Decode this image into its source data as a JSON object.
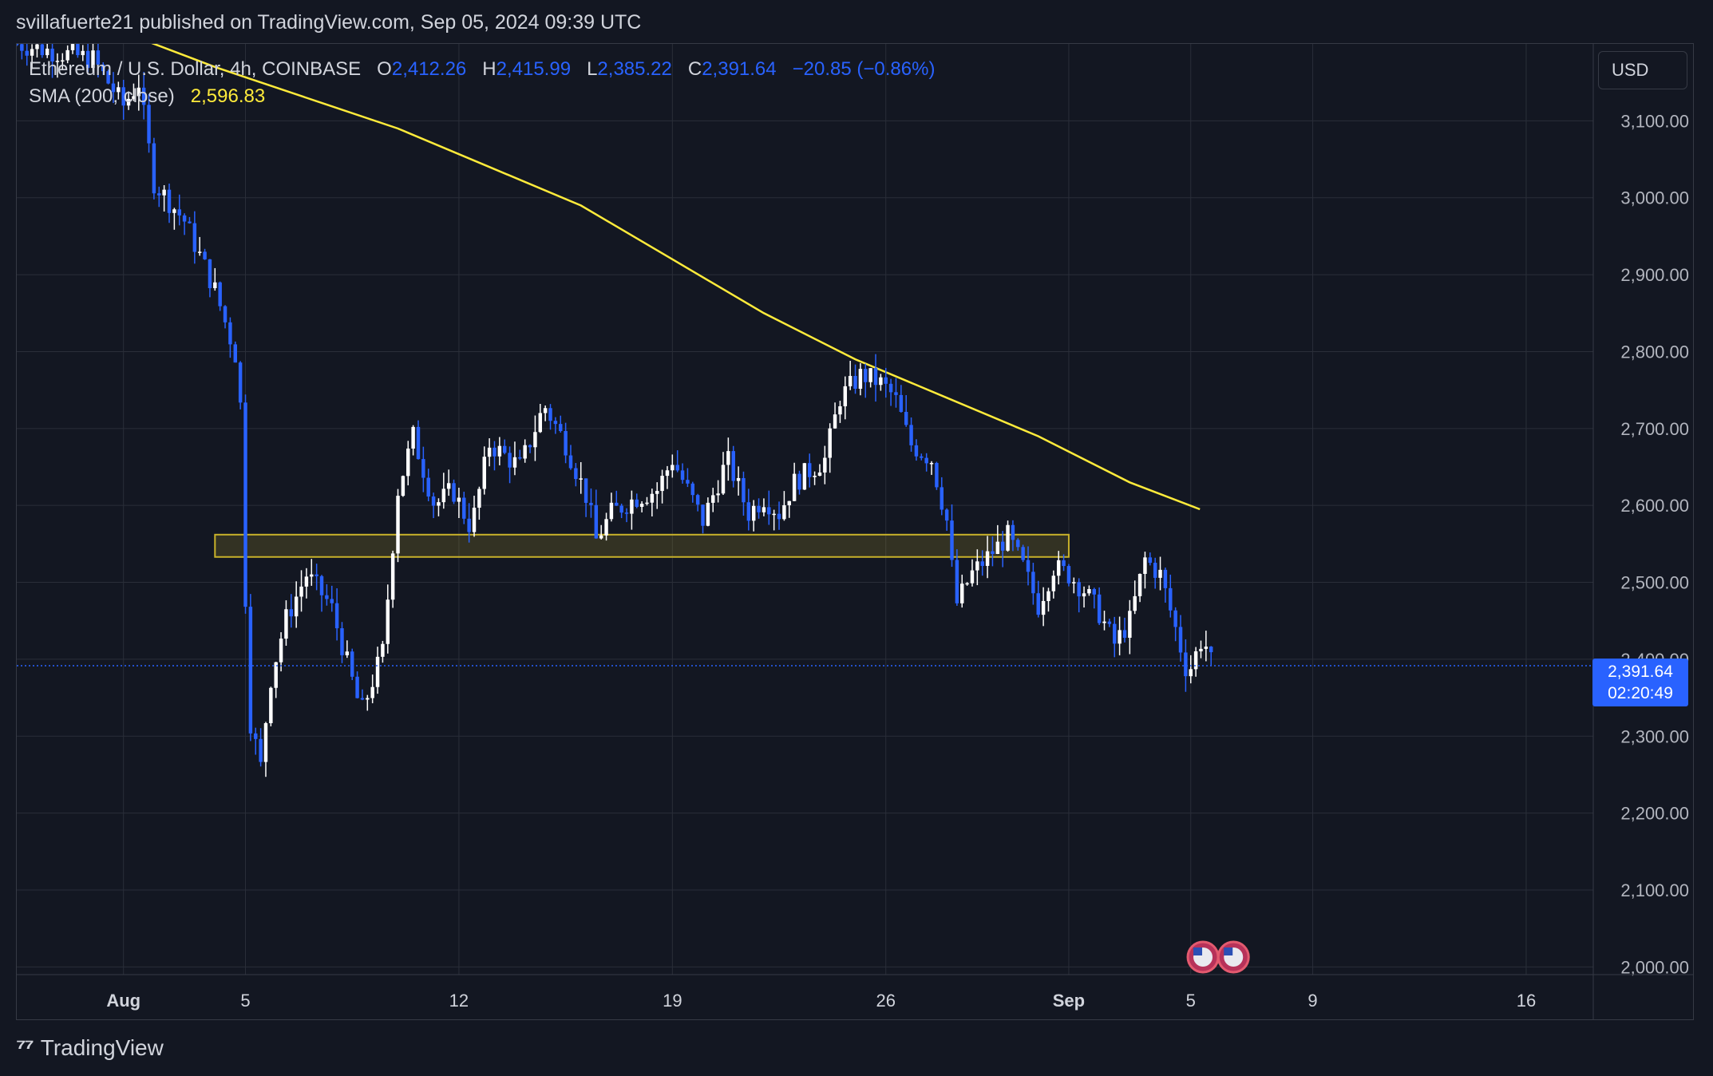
{
  "header": {
    "publisher_line": "svillafuerte21 published on TradingView.com, Sep 05, 2024 09:39 UTC"
  },
  "legend": {
    "symbol": "Ethereum / U.S. Dollar, 4h, COINBASE",
    "o_label": "O",
    "o_value": "2,412.26",
    "h_label": "H",
    "h_value": "2,415.99",
    "l_label": "L",
    "l_value": "2,385.22",
    "c_label": "C",
    "c_value": "2,391.64",
    "change": "−20.85 (−0.86%)",
    "sma_label": "SMA (200, close)",
    "sma_value": "2,596.83"
  },
  "currency_button": "USD",
  "price_tag": {
    "price": "2,391.64",
    "countdown": "02:20:49"
  },
  "footer": {
    "brand": "TradingView",
    "logo_icon": "tradingview-logo-icon"
  },
  "colors": {
    "background": "#131722",
    "grid": "#2a2e39",
    "candle_up": "#ffffff",
    "candle_down": "#2962ff",
    "sma": "#ffeb3b",
    "zone": "#c9b22a",
    "price_line": "#2962ff"
  },
  "chart_data": {
    "type": "candlestick",
    "title": "Ethereum / U.S. Dollar, 4h, COINBASE",
    "y_ticks": [
      2000,
      2100,
      2200,
      2300,
      2400,
      2500,
      2600,
      2700,
      2800,
      2900,
      3000,
      3100
    ],
    "y_tick_labels": [
      "2,000.00",
      "2,100.00",
      "2,200.00",
      "2,300.00",
      "2,400.00",
      "2,500.00",
      "2,600.00",
      "2,700.00",
      "2,800.00",
      "2,900.00",
      "3,000.00",
      "3,100.00"
    ],
    "ylim": [
      1990,
      3200
    ],
    "x_ticks": [
      {
        "label": "Aug",
        "day": 1
      },
      {
        "label": "5",
        "day": 5
      },
      {
        "label": "12",
        "day": 12
      },
      {
        "label": "19",
        "day": 19
      },
      {
        "label": "26",
        "day": 26
      },
      {
        "label": "Sep",
        "day": 32
      },
      {
        "label": "5",
        "day": 36
      },
      {
        "label": "9",
        "day": 40
      },
      {
        "label": "16",
        "day": 47
      }
    ],
    "xlim": [
      -2.5,
      49.2
    ],
    "x_unit": "days since Jul 31, 2024",
    "current_price": 2391.64,
    "sma_200": [
      [
        -2.5,
        3270
      ],
      [
        1,
        3215
      ],
      [
        4,
        3170
      ],
      [
        7,
        3130
      ],
      [
        10,
        3090
      ],
      [
        13,
        3040
      ],
      [
        16,
        2990
      ],
      [
        19,
        2920
      ],
      [
        22,
        2850
      ],
      [
        25,
        2790
      ],
      [
        28,
        2740
      ],
      [
        31,
        2690
      ],
      [
        34,
        2630
      ],
      [
        36.3,
        2595
      ]
    ],
    "support_zone": {
      "day_start": 4,
      "day_end": 32,
      "low": 2533,
      "high": 2562
    },
    "events": [
      {
        "day": 36.4,
        "icon": "us-flag-icon"
      },
      {
        "day": 37.4,
        "icon": "us-flag-icon"
      }
    ],
    "path_points": [
      [
        -2.5,
        3200
      ],
      [
        0,
        3180
      ],
      [
        1,
        3120
      ],
      [
        1.5,
        3150
      ],
      [
        2,
        3020
      ],
      [
        3,
        2970
      ],
      [
        4,
        2880
      ],
      [
        4.8,
        2780
      ],
      [
        5.1,
        2330
      ],
      [
        5.5,
        2260
      ],
      [
        5.8,
        2370
      ],
      [
        6.3,
        2450
      ],
      [
        7,
        2510
      ],
      [
        7.8,
        2470
      ],
      [
        8.3,
        2400
      ],
      [
        8.8,
        2330
      ],
      [
        9.5,
        2410
      ],
      [
        10,
        2620
      ],
      [
        10.5,
        2690
      ],
      [
        11.2,
        2600
      ],
      [
        11.8,
        2620
      ],
      [
        12.4,
        2570
      ],
      [
        13,
        2680
      ],
      [
        14,
        2650
      ],
      [
        14.8,
        2730
      ],
      [
        15.5,
        2680
      ],
      [
        16.2,
        2610
      ],
      [
        16.5,
        2555
      ],
      [
        17,
        2590
      ],
      [
        17.8,
        2610
      ],
      [
        18.5,
        2620
      ],
      [
        19,
        2660
      ],
      [
        19.5,
        2620
      ],
      [
        20,
        2580
      ],
      [
        20.8,
        2660
      ],
      [
        21.5,
        2590
      ],
      [
        22,
        2610
      ],
      [
        22.5,
        2590
      ],
      [
        23,
        2630
      ],
      [
        24,
        2660
      ],
      [
        24.5,
        2740
      ],
      [
        25.2,
        2770
      ],
      [
        25.8,
        2760
      ],
      [
        26.3,
        2740
      ],
      [
        26.8,
        2680
      ],
      [
        27.5,
        2660
      ],
      [
        28,
        2580
      ],
      [
        28.3,
        2470
      ],
      [
        28.8,
        2510
      ],
      [
        29.5,
        2540
      ],
      [
        30,
        2560
      ],
      [
        30.5,
        2520
      ],
      [
        31,
        2470
      ],
      [
        31.5,
        2520
      ],
      [
        32,
        2510
      ],
      [
        32.5,
        2490
      ],
      [
        33,
        2460
      ],
      [
        33.5,
        2420
      ],
      [
        34,
        2450
      ],
      [
        34.5,
        2530
      ],
      [
        35,
        2510
      ],
      [
        35.5,
        2440
      ],
      [
        35.9,
        2380
      ],
      [
        36.4,
        2430
      ],
      [
        36.7,
        2392
      ]
    ]
  }
}
